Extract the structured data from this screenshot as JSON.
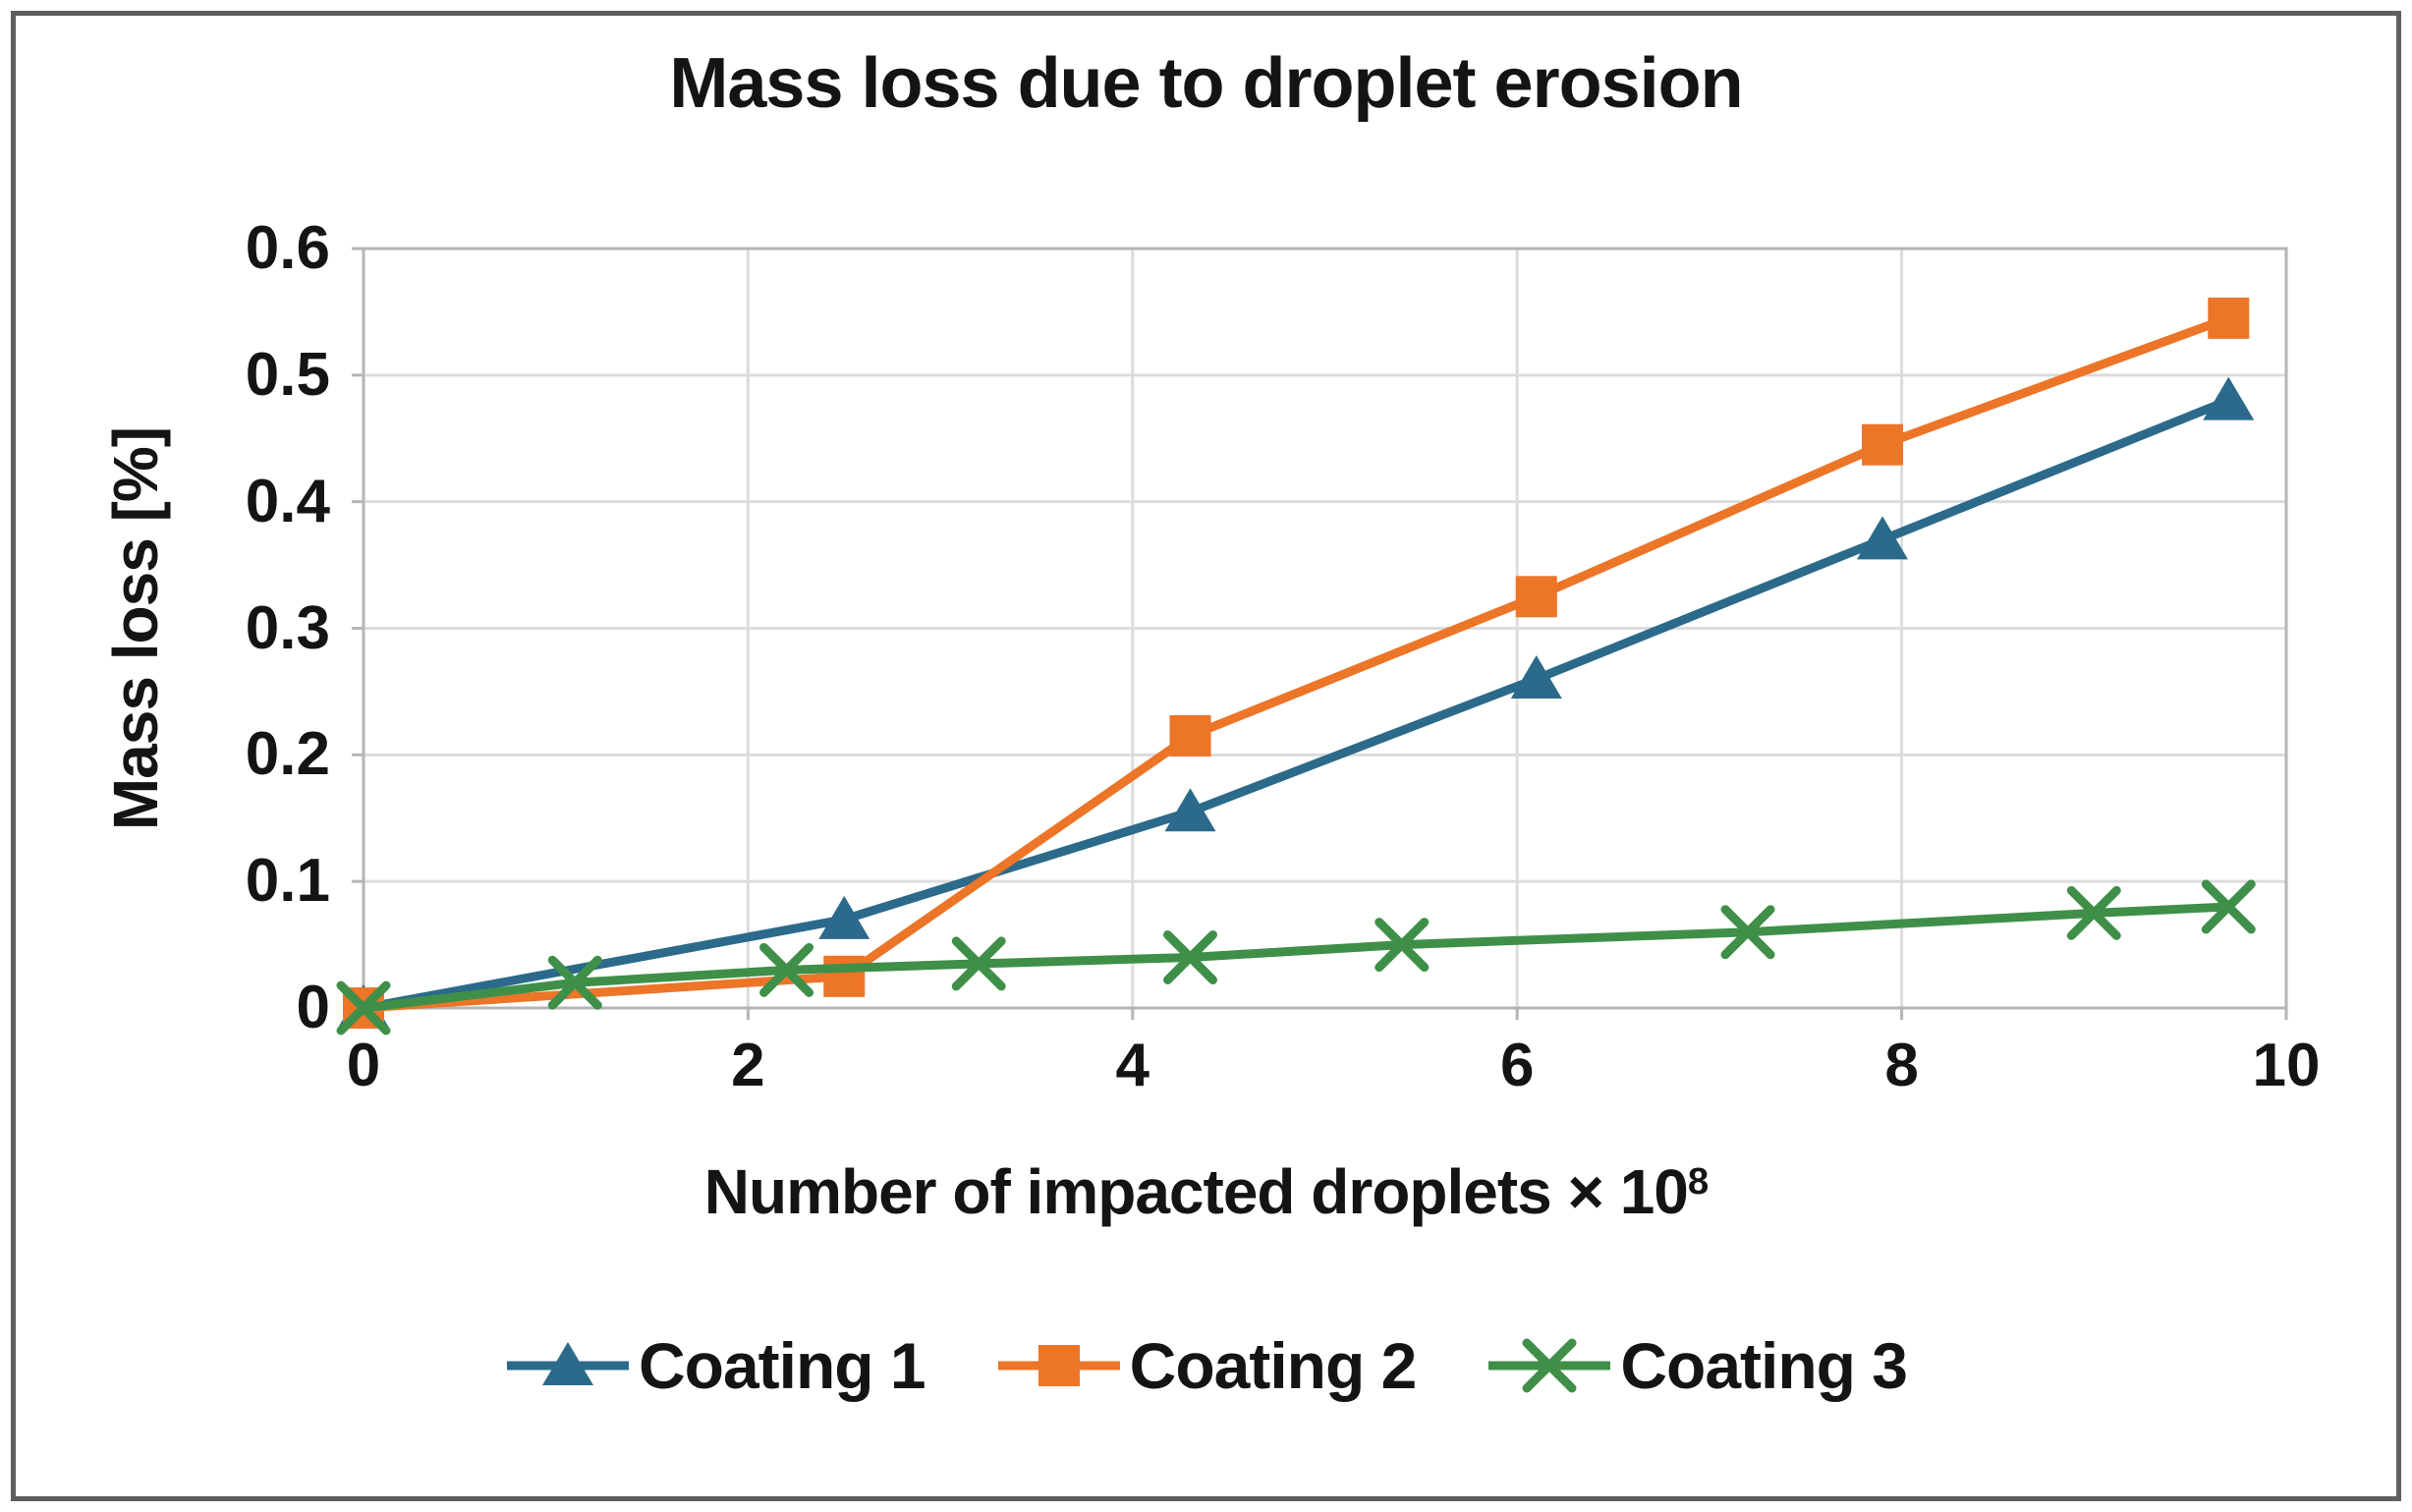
{
  "figure": {
    "border_color": "#5f5f5f",
    "background": "#ffffff",
    "text_color": "#141414",
    "gridline_color": "#dcdcdc",
    "axis_color": "#b5b5b5"
  },
  "chart_data": {
    "type": "line",
    "title": "Mass loss due to droplet erosion",
    "ylabel": "Mass loss [%]",
    "xlabel": "Number of impacted droplets × 10",
    "xlabel_exponent": "8",
    "xlim": [
      0,
      10
    ],
    "ylim": [
      0,
      0.6
    ],
    "x_ticks": [
      "0",
      "2",
      "4",
      "6",
      "8",
      "10"
    ],
    "y_ticks": [
      "0",
      "0.1",
      "0.2",
      "0.3",
      "0.4",
      "0.5",
      "0.6"
    ],
    "grid": true,
    "legend_position": "bottom",
    "series": [
      {
        "name": "Coating 1",
        "color": "#2B6A8A",
        "marker": "triangle",
        "points": [
          [
            0,
            0
          ],
          [
            2.5,
            0.07
          ],
          [
            4.3,
            0.155
          ],
          [
            6.1,
            0.26
          ],
          [
            7.9,
            0.37
          ],
          [
            9.7,
            0.48
          ]
        ]
      },
      {
        "name": "Coating 2",
        "color": "#EC7528",
        "marker": "square",
        "points": [
          [
            0,
            0
          ],
          [
            2.5,
            0.025
          ],
          [
            4.3,
            0.215
          ],
          [
            6.1,
            0.325
          ],
          [
            7.9,
            0.445
          ],
          [
            9.7,
            0.545
          ]
        ]
      },
      {
        "name": "Coating 3",
        "color": "#3F8F49",
        "marker": "x",
        "points": [
          [
            0,
            0
          ],
          [
            1.1,
            0.02
          ],
          [
            2.2,
            0.03
          ],
          [
            3.2,
            0.035
          ],
          [
            4.3,
            0.04
          ],
          [
            5.4,
            0.05
          ],
          [
            7.2,
            0.06
          ],
          [
            9.0,
            0.075
          ],
          [
            9.7,
            0.08
          ]
        ]
      }
    ]
  }
}
